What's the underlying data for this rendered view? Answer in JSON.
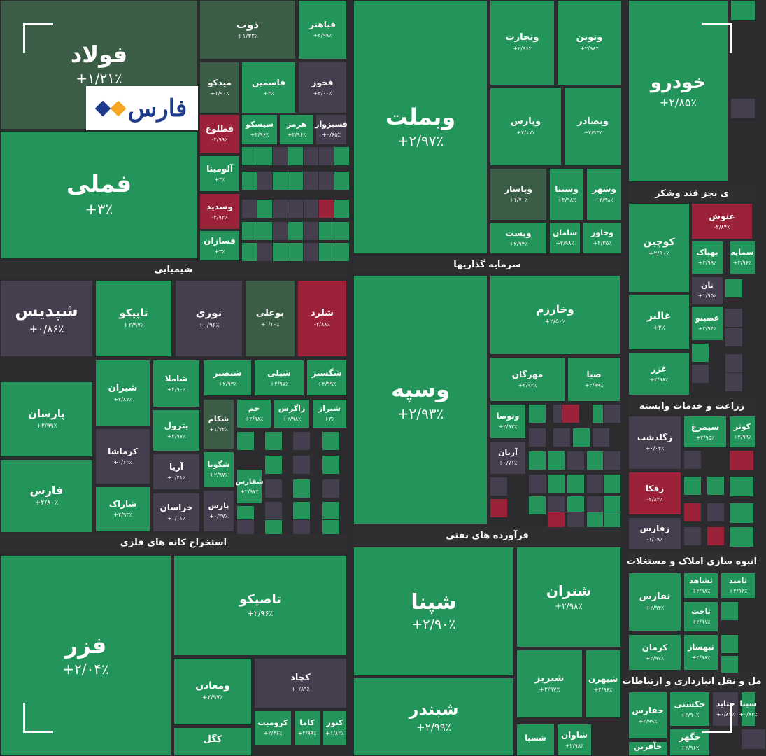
{
  "brand": {
    "logo_text": "فارس",
    "colors": {
      "blue": "#1d3a8a",
      "orange": "#f5a623"
    }
  },
  "colors": {
    "up": "#23945a",
    "up_light": "#1e8a52",
    "flat": "#453e4f",
    "mild": "#3b5c45",
    "down": "#9b2238",
    "bg": "#2c2c2e"
  },
  "sectors": [
    {
      "label": "شیمیایی"
    },
    {
      "label": "سرمایه گذاریها"
    },
    {
      "label": "استخراج کانه های فلزی"
    },
    {
      "label": "فرآورده های نفتی"
    },
    {
      "label": "ی بجز قند وشکر"
    },
    {
      "label": "زراعت و خدمات وابسته"
    },
    {
      "label": "انبوه سازی املاک و مستغلات"
    },
    {
      "label": "مل و نقل انبارداری و ارتباطات"
    }
  ],
  "chart_data": {
    "type": "heatmap",
    "tiles": [
      {
        "symbol": "فولاد",
        "change": "+۱/۲۱٪",
        "value": 1.21
      },
      {
        "symbol": "فملی",
        "change": "+۳٪",
        "value": 3
      },
      {
        "symbol": "ذوب",
        "change": "+۱/۳۲٪",
        "value": 1.32
      },
      {
        "symbol": "فباهنر",
        "change": "+۲/۹۹٪",
        "value": 2.99
      },
      {
        "symbol": "میدکو",
        "change": "+۱/۹۰٪",
        "value": 1.9
      },
      {
        "symbol": "فاسمین",
        "change": "+۳٪",
        "value": 3
      },
      {
        "symbol": "فخوز",
        "change": "+۳/۰۰٪",
        "value": 3.0
      },
      {
        "symbol": "فطلوع",
        "change": "-۲/۹۹٪",
        "value": -2.99
      },
      {
        "symbol": "سیسکو",
        "change": "+۲/۹۶٪",
        "value": 2.96
      },
      {
        "symbol": "هرمز",
        "change": "+۲/۹۶٪",
        "value": 2.96
      },
      {
        "symbol": "فسبزوار",
        "change": "+۰/۶۵٪",
        "value": 0.65
      },
      {
        "symbol": "آلومینا",
        "change": "+۳٪",
        "value": 3
      },
      {
        "symbol": "وسدید",
        "change": "-۲/۹۳٪",
        "value": -2.93
      },
      {
        "symbol": "فسازان",
        "change": "+۳٪",
        "value": 3
      },
      {
        "symbol": "وبملت",
        "change": "+۲/۹۷٪",
        "value": 2.97
      },
      {
        "symbol": "وتجارت",
        "change": "+۲/۹۶٪",
        "value": 2.96
      },
      {
        "symbol": "ونوین",
        "change": "+۲/۹۸٪",
        "value": 2.98
      },
      {
        "symbol": "وپارس",
        "change": "+۲/۱۷٪",
        "value": 2.17
      },
      {
        "symbol": "وبصادر",
        "change": "+۲/۹۳٪",
        "value": 2.93
      },
      {
        "symbol": "وپاسار",
        "change": "+۱/۷۰٪",
        "value": 1.7
      },
      {
        "symbol": "وسینا",
        "change": "+۲/۹۸٪",
        "value": 2.98
      },
      {
        "symbol": "وشهر",
        "change": "+۲/۹۸٪",
        "value": 2.98
      },
      {
        "symbol": "وپست",
        "change": "+۲/۹۴٪",
        "value": 2.94
      },
      {
        "symbol": "سامان",
        "change": "+۲/۹۸٪",
        "value": 2.98
      },
      {
        "symbol": "وخاور",
        "change": "+۲/۳۵٪",
        "value": 2.35
      },
      {
        "symbol": "خودرو",
        "change": "+۲/۸۵٪",
        "value": 2.85
      },
      {
        "symbol": "کوچین",
        "change": "+۲/۹۰٪",
        "value": 2.9
      },
      {
        "symbol": "غنوش",
        "change": "-۲/۸۴٪",
        "value": -2.84
      },
      {
        "symbol": "بهپاک",
        "change": "+۲/۹۹٪",
        "value": 2.99
      },
      {
        "symbol": "نان",
        "change": "+۱/۹۵٪",
        "value": 1.95
      },
      {
        "symbol": "غالبر",
        "change": "+۳٪",
        "value": 3
      },
      {
        "symbol": "غصینو",
        "change": "+۲/۹۴٪",
        "value": 2.94
      },
      {
        "symbol": "غزر",
        "change": "+۲/۹۸٪",
        "value": 2.98
      },
      {
        "symbol": "شپدیس",
        "change": "+۰/۸۶٪",
        "value": 0.86
      },
      {
        "symbol": "تاپیکو",
        "change": "+۲/۹۷٪",
        "value": 2.97
      },
      {
        "symbol": "نوری",
        "change": "+۰/۹۶٪",
        "value": 0.96
      },
      {
        "symbol": "بوعلی",
        "change": "+۱/۱۰٪",
        "value": 1.1
      },
      {
        "symbol": "شلرد",
        "change": "-۲/۸۸٪",
        "value": -2.88
      },
      {
        "symbol": "پارسان",
        "change": "+۲/۹۹٪",
        "value": 2.99
      },
      {
        "symbol": "شیران",
        "change": "+۲/۸۷٪",
        "value": 2.87
      },
      {
        "symbol": "شاملا",
        "change": "+۲/۹۰٪",
        "value": 2.9
      },
      {
        "symbol": "شبصیر",
        "change": "+۲/۹۳٪",
        "value": 2.93
      },
      {
        "symbol": "شپلی",
        "change": "+۲/۹۷٪",
        "value": 2.97
      },
      {
        "symbol": "شگستر",
        "change": "+۲/۹۹٪",
        "value": 2.99
      },
      {
        "symbol": "پترول",
        "change": "+۲/۹۷٪",
        "value": 2.97
      },
      {
        "symbol": "شکام",
        "change": "+۱/۷۲٪",
        "value": 1.72
      },
      {
        "symbol": "جم",
        "change": "+۲/۹۸٪",
        "value": 2.98
      },
      {
        "symbol": "زاگرس",
        "change": "+۲/۹۸٪",
        "value": 2.98
      },
      {
        "symbol": "شیراز",
        "change": "+۳٪",
        "value": 3
      },
      {
        "symbol": "کرماشا",
        "change": "+۰/۶۲٪",
        "value": 0.62
      },
      {
        "symbol": "فارس",
        "change": "+۲/۸۰٪",
        "value": 2.8
      },
      {
        "symbol": "آریا",
        "change": "+۰/۴۱٪",
        "value": 0.41
      },
      {
        "symbol": "شگویا",
        "change": "+۲/۹۷٪",
        "value": 2.97
      },
      {
        "symbol": "شفارس",
        "change": "+۲/۹۷٪",
        "value": 2.97
      },
      {
        "symbol": "شاراک",
        "change": "+۲/۹۳٪",
        "value": 2.93
      },
      {
        "symbol": "خراسان",
        "change": "+۰/۰۱٪",
        "value": 0.01
      },
      {
        "symbol": "پارس",
        "change": "+۰/۳۷٪",
        "value": 0.37
      },
      {
        "symbol": "وسپه",
        "change": "+۲/۹۳٪",
        "value": 2.93
      },
      {
        "symbol": "وخارزم",
        "change": "+۲/۵۰٪",
        "value": 2.5
      },
      {
        "symbol": "مهرگان",
        "change": "+۲/۹۳٪",
        "value": 2.93
      },
      {
        "symbol": "صبا",
        "change": "+۲/۹۹٪",
        "value": 2.99
      },
      {
        "symbol": "وتوصا",
        "change": "+۲/۹۷٪",
        "value": 2.97
      },
      {
        "symbol": "آریان",
        "change": "+۰/۷۱٪",
        "value": 0.71
      },
      {
        "symbol": "زگلدشت",
        "change": "+۰/۰۴٪",
        "value": 0.04
      },
      {
        "symbol": "سیمرغ",
        "change": "+۲/۹۵٪",
        "value": 2.95
      },
      {
        "symbol": "کوثر",
        "change": "+۲/۹۹٪",
        "value": 2.99
      },
      {
        "symbol": "زفکا",
        "change": "-۲/۸۳٪",
        "value": -2.83
      },
      {
        "symbol": "زفارس",
        "change": "-۱/۱۹٪",
        "value": -1.19
      },
      {
        "symbol": "فزر",
        "change": "+۲/۰۴٪",
        "value": 2.04
      },
      {
        "symbol": "تاصیکو",
        "change": "+۲/۹۶٪",
        "value": 2.96
      },
      {
        "symbol": "ومعادن",
        "change": "+۲/۹۷٪",
        "value": 2.97
      },
      {
        "symbol": "کچاد",
        "change": "+۰/۸۹٪",
        "value": 0.89
      },
      {
        "symbol": "کرومیت",
        "change": "+۲/۴۶٪",
        "value": 2.46
      },
      {
        "symbol": "کاما",
        "change": "+۲/۹۹٪",
        "value": 2.99
      },
      {
        "symbol": "کنور",
        "change": "+۱/۸۲٪",
        "value": 1.82
      },
      {
        "symbol": "کگل",
        "change": "",
        "value": null
      },
      {
        "symbol": "شپنا",
        "change": "+۲/۹۰٪",
        "value": 2.9
      },
      {
        "symbol": "شتران",
        "change": "+۲/۹۸٪",
        "value": 2.98
      },
      {
        "symbol": "شبریز",
        "change": "+۲/۹۷٪",
        "value": 2.97
      },
      {
        "symbol": "شبهرن",
        "change": "+۲/۹۶٪",
        "value": 2.96
      },
      {
        "symbol": "شبندر",
        "change": "+۲/۹۹٪",
        "value": 2.99
      },
      {
        "symbol": "شسپا",
        "change": "",
        "value": null
      },
      {
        "symbol": "شاوان",
        "change": "+۲/۹۸٪",
        "value": 2.98
      },
      {
        "symbol": "ثفارس",
        "change": "+۲/۹۴٪",
        "value": 2.94
      },
      {
        "symbol": "ثشاهد",
        "change": "+۲/۹۸٪",
        "value": 2.98
      },
      {
        "symbol": "ثامید",
        "change": "+۲/۹۳٪",
        "value": 2.93
      },
      {
        "symbol": "ثاخت",
        "change": "+۲/۹۱٪",
        "value": 2.91
      },
      {
        "symbol": "کرمان",
        "change": "+۲/۹۷٪",
        "value": 2.97
      },
      {
        "symbol": "ثبهساز",
        "change": "+۲/۹۸٪",
        "value": 2.98
      },
      {
        "symbol": "حفارس",
        "change": "+۲/۹۹٪",
        "value": 2.99
      },
      {
        "symbol": "حکشتی",
        "change": "+۲/۹۰٪",
        "value": 2.9
      },
      {
        "symbol": "حتاید",
        "change": "+۰/۸۷٪",
        "value": 0.87
      },
      {
        "symbol": "سینا",
        "change": "+۰/۸۳٪",
        "value": 0.83
      },
      {
        "symbol": "حگهر",
        "change": "+۲/۹۶٪",
        "value": 2.96
      },
      {
        "symbol": "حآفرین",
        "change": "",
        "value": null
      },
      {
        "symbol": "سمایه",
        "change": "+۲/۹۶٪",
        "value": 2.96
      }
    ]
  }
}
